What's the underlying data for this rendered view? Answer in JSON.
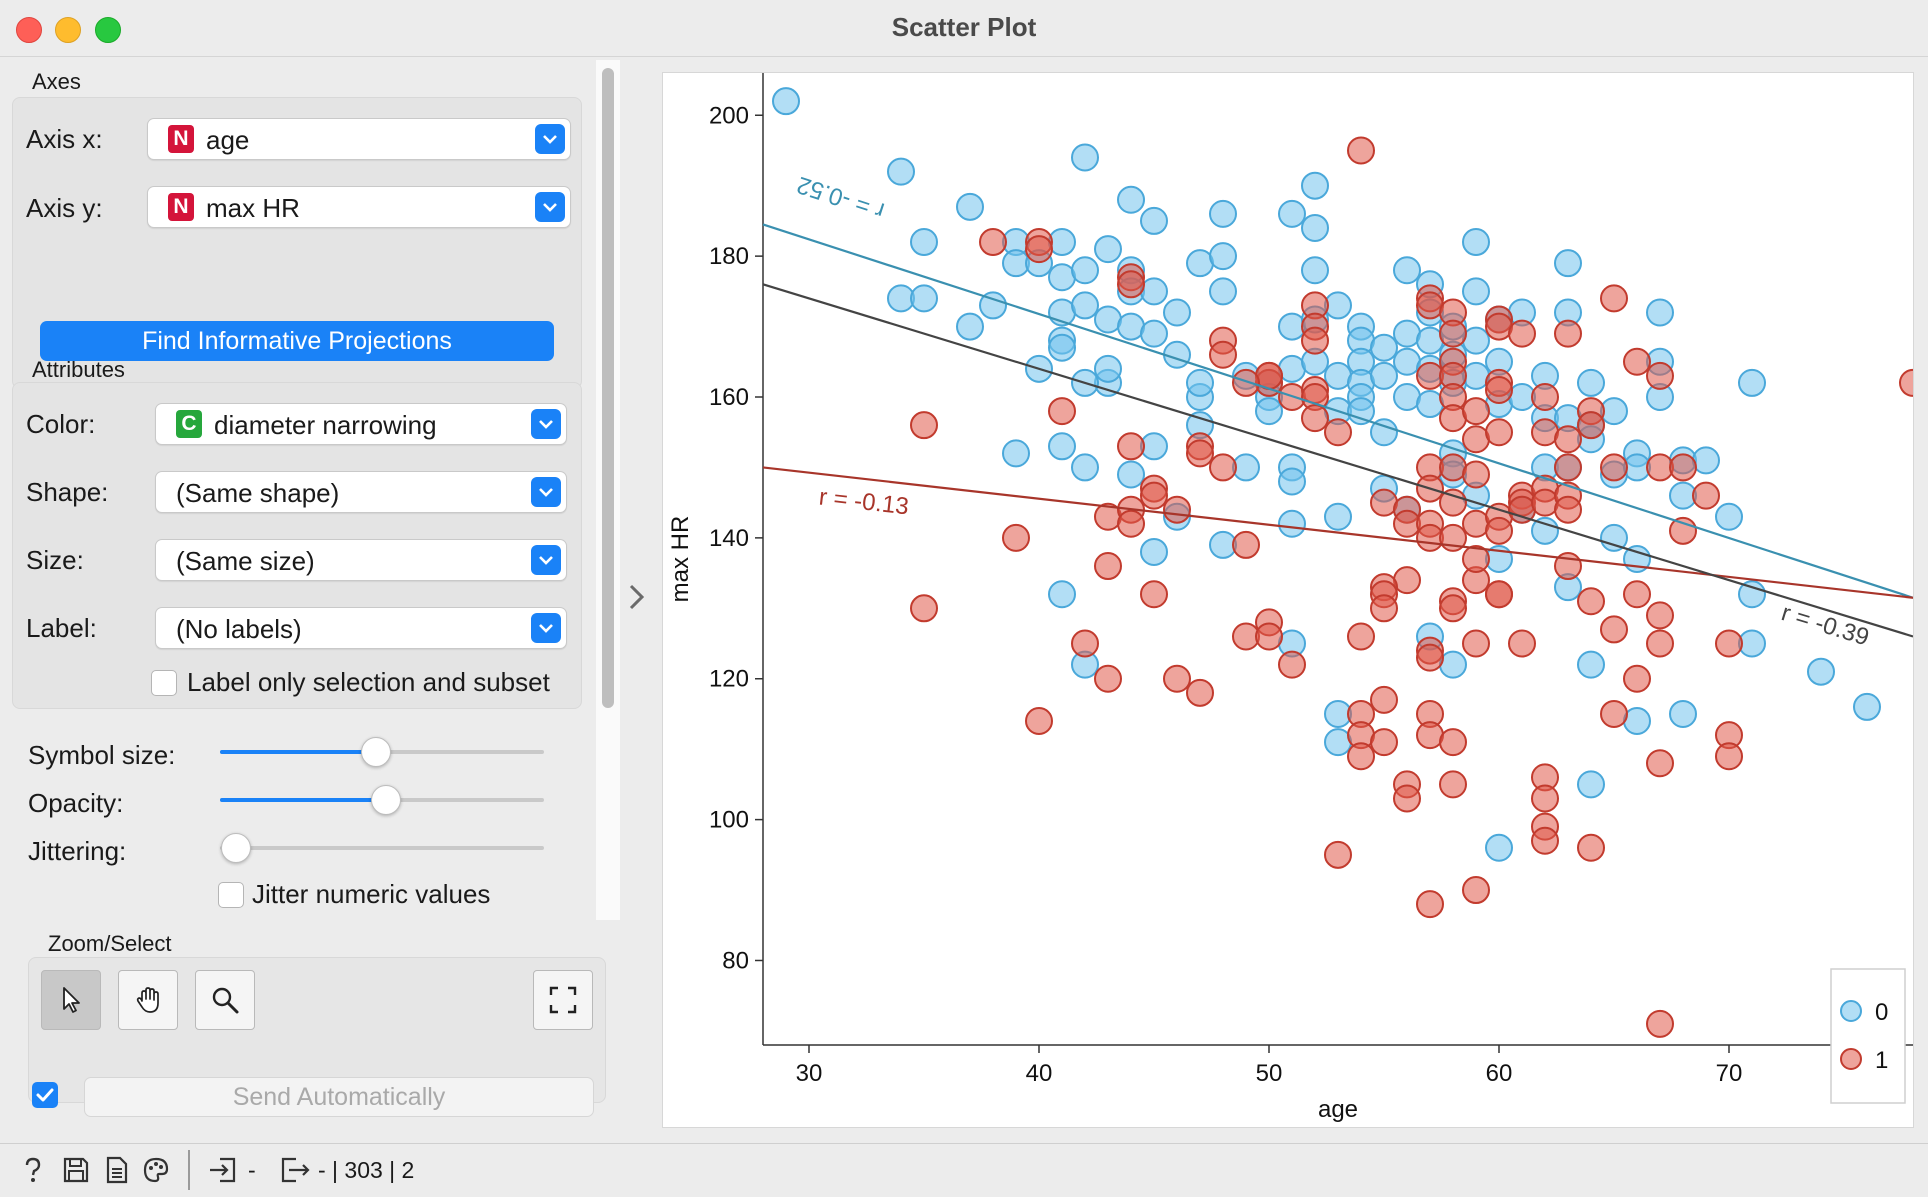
{
  "window": {
    "title": "Scatter Plot"
  },
  "axes_group": {
    "title": "Axes",
    "axis_x": {
      "label": "Axis x:",
      "badge": "N",
      "value": "age"
    },
    "axis_y": {
      "label": "Axis y:",
      "badge": "N",
      "value": "max HR"
    },
    "find_button": "Find Informative Projections"
  },
  "attributes_group": {
    "title": "Attributes",
    "color": {
      "label": "Color:",
      "badge": "C",
      "value": "diameter narrowing"
    },
    "shape": {
      "label": "Shape:",
      "value": "(Same shape)"
    },
    "size": {
      "label": "Size:",
      "value": "(Same size)"
    },
    "label": {
      "label": "Label:",
      "value": "(No labels)"
    },
    "label_only_selection": {
      "label": "Label only selection and subset",
      "checked": false
    }
  },
  "display": {
    "symbol_size": {
      "label": "Symbol size:",
      "value": 0.48
    },
    "opacity": {
      "label": "Opacity:",
      "value": 0.51
    },
    "jittering": {
      "label": "Jittering:",
      "value": 0.0
    },
    "jitter_numeric": {
      "label": "Jitter numeric values",
      "checked": false
    }
  },
  "zoom_select": {
    "title": "Zoom/Select",
    "tools": [
      "select-tool",
      "pan-tool",
      "zoom-tool",
      "reset-zoom"
    ],
    "active": "select-tool"
  },
  "send": {
    "label": "Send Automatically",
    "checked": true
  },
  "status": {
    "input_summary": "-",
    "output_summary": "- | 303 | 2"
  },
  "colors": {
    "class0": "#72c2ec",
    "class1": "#e05a4a",
    "accent": "#1a82f7"
  },
  "chart_data": {
    "type": "scatter",
    "xlabel": "age",
    "ylabel": "max HR",
    "xlim": [
      28,
      78
    ],
    "ylim": [
      68,
      206
    ],
    "xticks": [
      30,
      40,
      50,
      60,
      70
    ],
    "yticks": [
      80,
      100,
      120,
      140,
      160,
      180,
      200
    ],
    "legend": {
      "placement": "bottom-right",
      "entries": [
        "0",
        "1"
      ]
    },
    "regression_lines": [
      {
        "label": "r = -0.52",
        "group": "0",
        "color": "#3a90b0",
        "y_at_xmin": 184.5,
        "y_at_xmax": 131.5
      },
      {
        "label": "r = -0.13",
        "group": "1",
        "color": "#a8352a",
        "y_at_xmin": 150,
        "y_at_xmax": 131.5
      },
      {
        "label": "r = -0.39",
        "group": "all",
        "color": "#444444",
        "y_at_xmin": 176,
        "y_at_xmax": 126
      }
    ],
    "series": [
      {
        "name": "0",
        "points": [
          [
            29,
            202
          ],
          [
            34,
            192
          ],
          [
            35,
            182
          ],
          [
            34,
            174
          ],
          [
            35,
            174
          ],
          [
            37,
            187
          ],
          [
            37,
            170
          ],
          [
            38,
            173
          ],
          [
            39,
            182
          ],
          [
            39,
            179
          ],
          [
            40,
            179
          ],
          [
            41,
            182
          ],
          [
            41,
            177
          ],
          [
            41,
            172
          ],
          [
            41,
            168
          ],
          [
            41,
            167
          ],
          [
            42,
            194
          ],
          [
            42,
            178
          ],
          [
            42,
            173
          ],
          [
            43,
            181
          ],
          [
            43,
            171
          ],
          [
            44,
            188
          ],
          [
            44,
            178
          ],
          [
            44,
            175
          ],
          [
            44,
            170
          ],
          [
            45,
            185
          ],
          [
            45,
            175
          ],
          [
            45,
            169
          ],
          [
            46,
            172
          ],
          [
            47,
            179
          ],
          [
            48,
            186
          ],
          [
            48,
            180
          ],
          [
            48,
            175
          ],
          [
            47,
            160
          ],
          [
            47,
            156
          ],
          [
            49,
            163
          ],
          [
            50,
            162
          ],
          [
            50,
            160
          ],
          [
            50,
            158
          ],
          [
            51,
            186
          ],
          [
            51,
            170
          ],
          [
            51,
            164
          ],
          [
            52,
            190
          ],
          [
            52,
            184
          ],
          [
            52,
            178
          ],
          [
            52,
            171
          ],
          [
            52,
            165
          ],
          [
            53,
            173
          ],
          [
            53,
            163
          ],
          [
            53,
            158
          ],
          [
            54,
            170
          ],
          [
            54,
            168
          ],
          [
            54,
            165
          ],
          [
            54,
            162
          ],
          [
            54,
            160
          ],
          [
            54,
            158
          ],
          [
            55,
            167
          ],
          [
            55,
            163
          ],
          [
            55,
            155
          ],
          [
            56,
            178
          ],
          [
            56,
            169
          ],
          [
            56,
            165
          ],
          [
            56,
            160
          ],
          [
            57,
            176
          ],
          [
            57,
            172
          ],
          [
            57,
            168
          ],
          [
            57,
            164
          ],
          [
            57,
            159
          ],
          [
            58,
            170
          ],
          [
            58,
            166
          ],
          [
            58,
            162
          ],
          [
            58,
            152
          ],
          [
            59,
            182
          ],
          [
            59,
            175
          ],
          [
            59,
            168
          ],
          [
            59,
            163
          ],
          [
            60,
            171
          ],
          [
            60,
            165
          ],
          [
            60,
            159
          ],
          [
            61,
            172
          ],
          [
            61,
            160
          ],
          [
            62,
            163
          ],
          [
            62,
            157
          ],
          [
            62,
            150
          ],
          [
            63,
            179
          ],
          [
            63,
            172
          ],
          [
            63,
            157
          ],
          [
            63,
            150
          ],
          [
            64,
            162
          ],
          [
            64,
            156
          ],
          [
            64,
            154
          ],
          [
            65,
            158
          ],
          [
            65,
            149
          ],
          [
            66,
            152
          ],
          [
            66,
            150
          ],
          [
            67,
            172
          ],
          [
            67,
            165
          ],
          [
            67,
            160
          ],
          [
            68,
            151
          ],
          [
            68,
            146
          ],
          [
            69,
            151
          ],
          [
            70,
            143
          ],
          [
            71,
            162
          ],
          [
            71,
            132
          ],
          [
            71,
            125
          ],
          [
            74,
            121
          ],
          [
            76,
            116
          ],
          [
            39,
            152
          ],
          [
            41,
            153
          ],
          [
            42,
            150
          ],
          [
            43,
            162
          ],
          [
            44,
            149
          ],
          [
            45,
            138
          ],
          [
            46,
            143
          ],
          [
            48,
            139
          ],
          [
            51,
            150
          ],
          [
            51,
            142
          ],
          [
            53,
            143
          ],
          [
            55,
            147
          ],
          [
            56,
            144
          ],
          [
            58,
            149
          ],
          [
            59,
            146
          ],
          [
            60,
            137
          ],
          [
            61,
            144
          ],
          [
            62,
            141
          ],
          [
            63,
            133
          ],
          [
            64,
            122
          ],
          [
            64,
            105
          ],
          [
            65,
            140
          ],
          [
            66,
            137
          ],
          [
            66,
            114
          ],
          [
            68,
            115
          ],
          [
            41,
            132
          ],
          [
            42,
            122
          ],
          [
            51,
            125
          ],
          [
            53,
            115
          ],
          [
            53,
            111
          ],
          [
            57,
            126
          ],
          [
            58,
            122
          ],
          [
            60,
            96
          ],
          [
            51,
            148
          ],
          [
            49,
            150
          ],
          [
            46,
            166
          ],
          [
            47,
            162
          ],
          [
            45,
            153
          ],
          [
            43,
            164
          ],
          [
            42,
            162
          ],
          [
            40,
            164
          ]
        ]
      },
      {
        "name": "1",
        "points": [
          [
            54,
            195
          ],
          [
            38,
            182
          ],
          [
            40,
            182
          ],
          [
            40,
            181
          ],
          [
            44,
            177
          ],
          [
            44,
            176
          ],
          [
            52,
            173
          ],
          [
            52,
            170
          ],
          [
            52,
            168
          ],
          [
            57,
            174
          ],
          [
            57,
            173
          ],
          [
            58,
            172
          ],
          [
            58,
            169
          ],
          [
            60,
            171
          ],
          [
            60,
            170
          ],
          [
            61,
            169
          ],
          [
            63,
            169
          ],
          [
            65,
            174
          ],
          [
            66,
            165
          ],
          [
            67,
            163
          ],
          [
            78,
            162
          ],
          [
            35,
            156
          ],
          [
            41,
            158
          ],
          [
            44,
            153
          ],
          [
            45,
            147
          ],
          [
            45,
            146
          ],
          [
            46,
            144
          ],
          [
            47,
            153
          ],
          [
            48,
            168
          ],
          [
            48,
            166
          ],
          [
            48,
            150
          ],
          [
            49,
            139
          ],
          [
            50,
            163
          ],
          [
            50,
            162
          ],
          [
            51,
            160
          ],
          [
            52,
            161
          ],
          [
            52,
            160
          ],
          [
            52,
            157
          ],
          [
            53,
            155
          ],
          [
            55,
            145
          ],
          [
            56,
            144
          ],
          [
            56,
            142
          ],
          [
            56,
            134
          ],
          [
            57,
            163
          ],
          [
            57,
            150
          ],
          [
            57,
            147
          ],
          [
            57,
            142
          ],
          [
            57,
            140
          ],
          [
            58,
            165
          ],
          [
            58,
            163
          ],
          [
            58,
            160
          ],
          [
            58,
            157
          ],
          [
            58,
            150
          ],
          [
            58,
            145
          ],
          [
            58,
            140
          ],
          [
            59,
            158
          ],
          [
            59,
            154
          ],
          [
            59,
            149
          ],
          [
            59,
            142
          ],
          [
            59,
            134
          ],
          [
            60,
            162
          ],
          [
            60,
            161
          ],
          [
            60,
            155
          ],
          [
            60,
            143
          ],
          [
            60,
            141
          ],
          [
            60,
            132
          ],
          [
            61,
            146
          ],
          [
            61,
            145
          ],
          [
            61,
            144
          ],
          [
            62,
            160
          ],
          [
            62,
            155
          ],
          [
            62,
            147
          ],
          [
            62,
            145
          ],
          [
            63,
            154
          ],
          [
            63,
            150
          ],
          [
            63,
            146
          ],
          [
            63,
            144
          ],
          [
            63,
            136
          ],
          [
            64,
            158
          ],
          [
            64,
            156
          ],
          [
            64,
            131
          ],
          [
            65,
            150
          ],
          [
            65,
            127
          ],
          [
            65,
            115
          ],
          [
            66,
            132
          ],
          [
            66,
            120
          ],
          [
            67,
            150
          ],
          [
            67,
            129
          ],
          [
            67,
            125
          ],
          [
            67,
            108
          ],
          [
            67,
            71
          ],
          [
            68,
            150
          ],
          [
            68,
            141
          ],
          [
            69,
            146
          ],
          [
            70,
            125
          ],
          [
            70,
            112
          ],
          [
            70,
            109
          ],
          [
            35,
            130
          ],
          [
            39,
            140
          ],
          [
            40,
            114
          ],
          [
            42,
            125
          ],
          [
            43,
            143
          ],
          [
            43,
            136
          ],
          [
            43,
            120
          ],
          [
            44,
            144
          ],
          [
            45,
            132
          ],
          [
            46,
            120
          ],
          [
            47,
            118
          ],
          [
            49,
            126
          ],
          [
            50,
            128
          ],
          [
            50,
            126
          ],
          [
            51,
            122
          ],
          [
            53,
            95
          ],
          [
            54,
            126
          ],
          [
            54,
            115
          ],
          [
            54,
            112
          ],
          [
            54,
            109
          ],
          [
            55,
            133
          ],
          [
            55,
            132
          ],
          [
            55,
            130
          ],
          [
            55,
            117
          ],
          [
            55,
            111
          ],
          [
            56,
            105
          ],
          [
            56,
            103
          ],
          [
            57,
            124
          ],
          [
            57,
            123
          ],
          [
            57,
            115
          ],
          [
            57,
            112
          ],
          [
            57,
            88
          ],
          [
            58,
            131
          ],
          [
            58,
            130
          ],
          [
            58,
            111
          ],
          [
            58,
            105
          ],
          [
            59,
            137
          ],
          [
            59,
            125
          ],
          [
            59,
            90
          ],
          [
            60,
            132
          ],
          [
            61,
            125
          ],
          [
            62,
            106
          ],
          [
            62,
            103
          ],
          [
            62,
            99
          ],
          [
            62,
            97
          ],
          [
            64,
            96
          ],
          [
            50,
            163
          ],
          [
            47,
            152
          ],
          [
            49,
            162
          ],
          [
            44,
            142
          ]
        ]
      }
    ]
  }
}
